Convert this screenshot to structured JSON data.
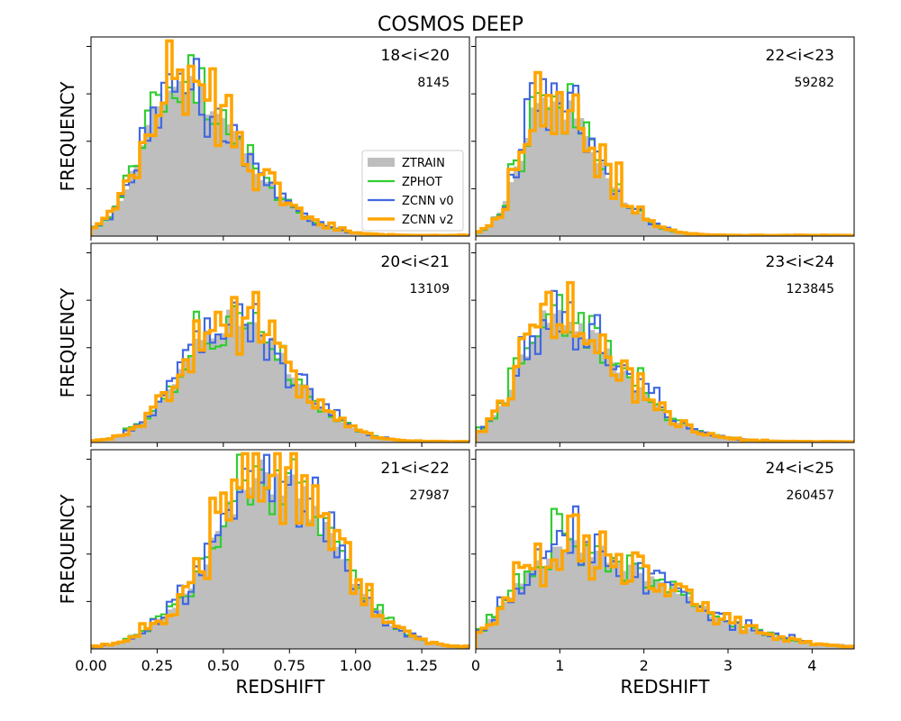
{
  "figure": {
    "title": "COSMOS DEEP",
    "ylabel": "FREQUENCY",
    "xlabel": "REDSHIFT",
    "legend": [
      "ZTRAIN",
      "ZPHOT",
      "ZCNN v0",
      "ZCNN v2"
    ],
    "colors": {
      "ztrain": "#bebebe",
      "zphot": "#32cd32",
      "zcnn_v0": "#4169e1",
      "zcnn_v2": "#ffa500"
    }
  },
  "chart_data": [
    {
      "type": "histogram",
      "panel": "top-left",
      "title": "18<i<20",
      "count": "8145",
      "xlim": [
        0,
        1.43
      ],
      "ylim": [
        0,
        1
      ],
      "xticks": [
        0,
        0.25,
        0.5,
        0.75,
        1.0,
        1.25
      ],
      "xtick_labels": [
        "0.00",
        "0.25",
        "0.50",
        "0.75",
        "1.00",
        "1.25"
      ],
      "peak_z": 0.33,
      "spread": 0.13,
      "skew": 1.8,
      "peak_height": 0.76,
      "series": [
        {
          "name": "ZTRAIN",
          "seed": 11
        },
        {
          "name": "ZPHOT",
          "seed": 12
        },
        {
          "name": "ZCNN v0",
          "seed": 13
        },
        {
          "name": "ZCNN v2",
          "seed": 14
        }
      ]
    },
    {
      "type": "histogram",
      "panel": "top-right",
      "title": "22<i<23",
      "count": "59282",
      "xlim": [
        0,
        4.5
      ],
      "ylim": [
        0,
        1
      ],
      "xticks": [
        0,
        1,
        2,
        3,
        4
      ],
      "xtick_labels": [
        "0",
        "1",
        "2",
        "3",
        "4"
      ],
      "peak_z": 0.85,
      "spread": 0.3,
      "skew": 1.9,
      "peak_height": 0.68,
      "series": [
        {
          "name": "ZTRAIN",
          "seed": 21
        },
        {
          "name": "ZPHOT",
          "seed": 22
        },
        {
          "name": "ZCNN v0",
          "seed": 23
        },
        {
          "name": "ZCNN v2",
          "seed": 24
        }
      ]
    },
    {
      "type": "histogram",
      "panel": "middle-left",
      "title": "20<i<21",
      "count": "13109",
      "xlim": [
        0,
        1.43
      ],
      "ylim": [
        0,
        1
      ],
      "xticks": [
        0,
        0.25,
        0.5,
        0.75,
        1.0,
        1.25
      ],
      "xtick_labels": [
        "0.00",
        "0.25",
        "0.50",
        "0.75",
        "1.00",
        "1.25"
      ],
      "peak_z": 0.52,
      "spread": 0.17,
      "skew": 1.3,
      "peak_height": 0.62,
      "series": [
        {
          "name": "ZTRAIN",
          "seed": 31
        },
        {
          "name": "ZPHOT",
          "seed": 32
        },
        {
          "name": "ZCNN v0",
          "seed": 33
        },
        {
          "name": "ZCNN v2",
          "seed": 34
        }
      ]
    },
    {
      "type": "histogram",
      "panel": "middle-right",
      "title": "23<i<24",
      "count": "123845",
      "xlim": [
        0,
        4.5
      ],
      "ylim": [
        0,
        1
      ],
      "xticks": [
        0,
        1,
        2,
        3,
        4
      ],
      "xtick_labels": [
        "0",
        "1",
        "2",
        "3",
        "4"
      ],
      "peak_z": 0.9,
      "spread": 0.38,
      "skew": 2.1,
      "peak_height": 0.63,
      "series": [
        {
          "name": "ZTRAIN",
          "seed": 41
        },
        {
          "name": "ZPHOT",
          "seed": 42
        },
        {
          "name": "ZCNN v0",
          "seed": 43
        },
        {
          "name": "ZCNN v2",
          "seed": 44
        }
      ]
    },
    {
      "type": "histogram",
      "panel": "bottom-left",
      "title": "21<i<22",
      "count": "27987",
      "xlim": [
        0,
        1.43
      ],
      "ylim": [
        0,
        1
      ],
      "xticks": [
        0,
        0.25,
        0.5,
        0.75,
        1.0,
        1.25
      ],
      "xtick_labels": [
        "0.00",
        "0.25",
        "0.50",
        "0.75",
        "1.00",
        "1.25"
      ],
      "peak_z": 0.68,
      "spread": 0.22,
      "skew": 1.05,
      "peak_height": 0.86,
      "series": [
        {
          "name": "ZTRAIN",
          "seed": 51
        },
        {
          "name": "ZPHOT",
          "seed": 52
        },
        {
          "name": "ZCNN v0",
          "seed": 53
        },
        {
          "name": "ZCNN v2",
          "seed": 54
        }
      ]
    },
    {
      "type": "histogram",
      "panel": "bottom-right",
      "title": "24<i<25",
      "count": "260457",
      "xlim": [
        0,
        4.5
      ],
      "ylim": [
        0,
        1
      ],
      "xticks": [
        0,
        1,
        2,
        3,
        4
      ],
      "xtick_labels": [
        "0",
        "1",
        "2",
        "3",
        "4"
      ],
      "peak_z": 1.05,
      "spread": 0.55,
      "skew": 2.2,
      "peak_height": 0.5,
      "series": [
        {
          "name": "ZTRAIN",
          "seed": 61
        },
        {
          "name": "ZPHOT",
          "seed": 62
        },
        {
          "name": "ZCNN v0",
          "seed": 63
        },
        {
          "name": "ZCNN v2",
          "seed": 64
        }
      ]
    }
  ]
}
